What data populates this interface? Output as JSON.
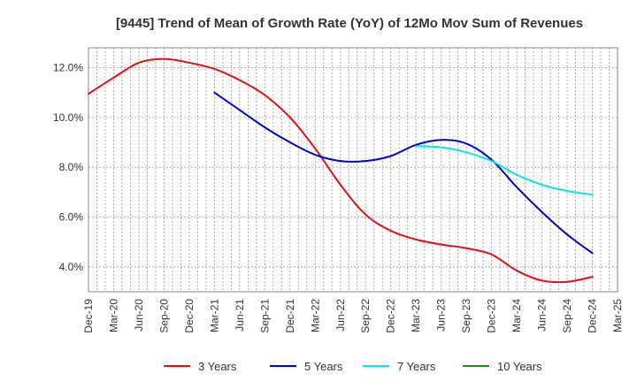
{
  "chart_data": {
    "type": "line",
    "title": "[9445]  Trend of Mean of Growth Rate (YoY) of 12Mo Mov Sum of Revenues",
    "xlabel": "",
    "ylabel": "",
    "ylim": [
      3.0,
      12.8
    ],
    "y_ticks": [
      4.0,
      6.0,
      8.0,
      10.0,
      12.0
    ],
    "y_tick_labels": [
      "4.0%",
      "6.0%",
      "8.0%",
      "10.0%",
      "12.0%"
    ],
    "x_tick_labels": [
      "Dec-19",
      "Mar-20",
      "Jun-20",
      "Sep-20",
      "Dec-20",
      "Mar-21",
      "Jun-21",
      "Sep-21",
      "Dec-21",
      "Mar-22",
      "Jun-22",
      "Sep-22",
      "Dec-22",
      "Mar-23",
      "Jun-23",
      "Sep-23",
      "Dec-23",
      "Mar-24",
      "Jun-24",
      "Sep-24",
      "Dec-24",
      "Mar-25"
    ],
    "x_range_months": [
      0,
      63
    ],
    "grid": true,
    "legend_position": "bottom",
    "series": [
      {
        "name": "3 Years",
        "color": "#dd1111",
        "x": [
          0,
          3,
          6,
          9,
          12,
          15,
          18,
          21,
          24,
          27,
          30,
          33,
          36,
          39,
          42,
          45,
          48,
          51,
          54,
          57,
          60
        ],
        "values": [
          10.95,
          11.6,
          12.2,
          12.35,
          12.2,
          11.95,
          11.5,
          10.9,
          10.0,
          8.75,
          7.3,
          6.1,
          5.45,
          5.1,
          4.9,
          4.75,
          4.5,
          3.85,
          3.45,
          3.4,
          3.6
        ]
      },
      {
        "name": "5 Years",
        "color": "#0000cc",
        "x": [
          15,
          18,
          21,
          24,
          27,
          30,
          33,
          36,
          39,
          42,
          45,
          48,
          51,
          54,
          57,
          60
        ],
        "values": [
          11.0,
          10.3,
          9.6,
          9.0,
          8.5,
          8.25,
          8.25,
          8.45,
          8.9,
          9.1,
          8.95,
          8.3,
          7.2,
          6.2,
          5.3,
          4.55
        ]
      },
      {
        "name": "7 Years",
        "color": "#00e5ee",
        "x": [
          39,
          42,
          45,
          48,
          51,
          54,
          57,
          60
        ],
        "values": [
          8.85,
          8.8,
          8.6,
          8.25,
          7.7,
          7.3,
          7.05,
          6.9
        ]
      },
      {
        "name": "10 Years",
        "color": "#228b22",
        "x": [],
        "values": []
      }
    ]
  }
}
